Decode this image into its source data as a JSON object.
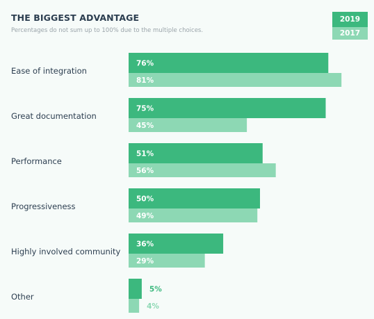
{
  "chart_data": {
    "type": "bar",
    "orientation": "horizontal",
    "title": "THE BIGGEST ADVANTAGE",
    "subtitle": "Percentages do not sum up to 100% due to the multiple choices.",
    "categories": [
      "Ease of integration",
      "Great documentation",
      "Performance",
      "Progressiveness",
      "Highly involved community",
      "Other"
    ],
    "series": [
      {
        "name": "2019",
        "values": [
          76,
          75,
          51,
          50,
          36,
          5
        ],
        "color": "#3cb87e"
      },
      {
        "name": "2017",
        "values": [
          81,
          45,
          56,
          49,
          29,
          4
        ],
        "color": "#8dd8b4"
      }
    ],
    "value_suffix": "%",
    "xlim": [
      0,
      100
    ],
    "legend_position": "top-right",
    "grid": false
  }
}
